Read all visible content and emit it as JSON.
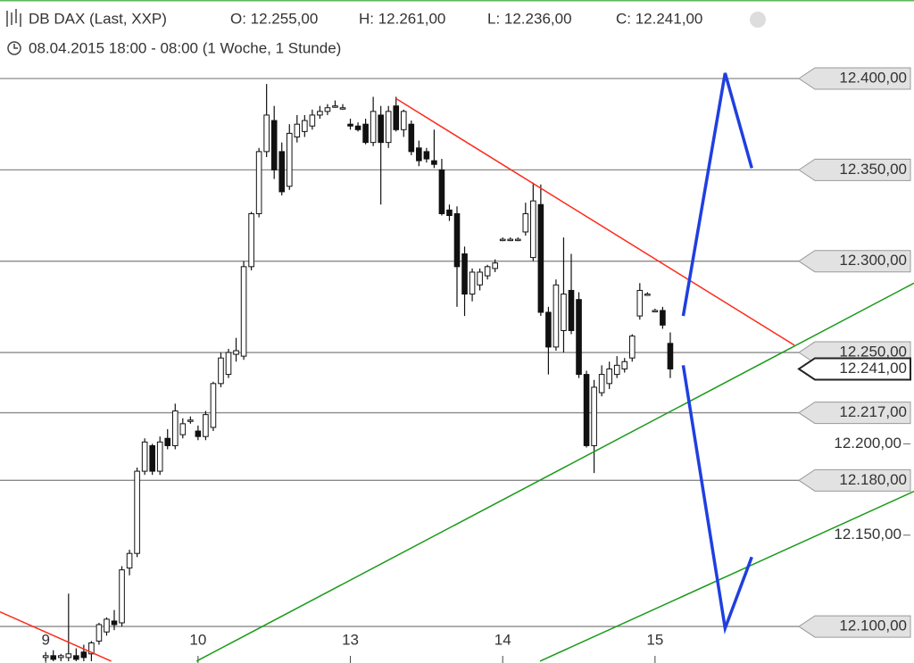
{
  "chart_data": {
    "type": "candlestick",
    "title": "DB DAX (Last, XXP)",
    "open_label": "O: 12.255,00",
    "high_label": "H: 12.261,00",
    "low_label": "L: 12.236,00",
    "close_label": "C: 12.241,00",
    "subtitle": "08.04.2015 18:00 - 08:00 (1 Woche, 1 Stunde)",
    "xlim": [
      -6,
      114
    ],
    "ylim": [
      12080,
      12443
    ],
    "xticks": [
      {
        "value": 0,
        "label": "9"
      },
      {
        "value": 20,
        "label": "10"
      },
      {
        "value": 40,
        "label": "13"
      },
      {
        "value": 60,
        "label": "14"
      },
      {
        "value": 80,
        "label": "15"
      }
    ],
    "yticks": [
      {
        "value": 12200,
        "label": "12.200,00"
      },
      {
        "value": 12150,
        "label": "12.150,00"
      }
    ],
    "levels": [
      {
        "value": 12400,
        "label": "12.400,00"
      },
      {
        "value": 12350,
        "label": "12.350,00"
      },
      {
        "value": 12300,
        "label": "12.300,00"
      },
      {
        "value": 12250,
        "label": "12.250,00"
      },
      {
        "value": 12217,
        "label": "12.217,00"
      },
      {
        "value": 12180,
        "label": "12.180,00"
      },
      {
        "value": 12100,
        "label": "12.100,00"
      }
    ],
    "current": {
      "value": 12241,
      "label": "12.241,00"
    },
    "x": [
      0,
      1,
      2,
      3,
      4,
      5,
      6,
      7,
      8,
      9,
      10,
      11,
      12,
      13,
      14,
      15,
      16,
      17,
      18,
      19,
      20,
      21,
      22,
      23,
      24,
      25,
      26,
      27,
      28,
      29,
      30,
      31,
      32,
      33,
      34,
      35,
      36,
      37,
      38,
      39,
      40,
      41,
      42,
      43,
      44,
      45,
      46,
      47,
      48,
      49,
      50,
      51,
      52,
      53,
      54,
      55,
      56,
      57,
      58,
      59,
      60,
      61,
      62,
      63,
      64,
      65,
      66,
      67,
      68,
      69,
      70,
      71,
      72,
      73,
      74,
      75,
      76,
      77,
      78,
      79,
      80,
      81,
      82
    ],
    "ohlc": [
      [
        12083,
        12086,
        12081,
        12084
      ],
      [
        12084,
        12087,
        12081,
        12082
      ],
      [
        12083,
        12085,
        12081,
        12084
      ],
      [
        12083,
        12118,
        12081,
        12085
      ],
      [
        12084,
        12088,
        12081,
        12082
      ],
      [
        12086,
        12090,
        12081,
        12083
      ],
      [
        12085,
        12092,
        12081,
        12091
      ],
      [
        12092,
        12102,
        12090,
        12101
      ],
      [
        12097,
        12105,
        12095,
        12104
      ],
      [
        12103,
        12109,
        12098,
        12101
      ],
      [
        12102,
        12133,
        12100,
        12131
      ],
      [
        12132,
        12142,
        12128,
        12140
      ],
      [
        12140,
        12187,
        12138,
        12185
      ],
      [
        12185,
        12203,
        12183,
        12201
      ],
      [
        12199,
        12200,
        12183,
        12185
      ],
      [
        12185,
        12204,
        12183,
        12201
      ],
      [
        12203,
        12208,
        12197,
        12199
      ],
      [
        12199,
        12222,
        12197,
        12218
      ],
      [
        12205,
        12214,
        12203,
        12211
      ],
      [
        12213,
        12215,
        12211,
        12213
      ],
      [
        12207,
        12210,
        12202,
        12204
      ],
      [
        12204,
        12218,
        12202,
        12216
      ],
      [
        12209,
        12234,
        12207,
        12233
      ],
      [
        12233,
        12250,
        12231,
        12247
      ],
      [
        12238,
        12252,
        12236,
        12250
      ],
      [
        12249,
        12258,
        12245,
        12251
      ],
      [
        12248,
        12300,
        12246,
        12297
      ],
      [
        12297,
        12327,
        12295,
        12326
      ],
      [
        12326,
        12362,
        12324,
        12360
      ],
      [
        12360,
        12397,
        12357,
        12380
      ],
      [
        12377,
        12385,
        12345,
        12350
      ],
      [
        12360,
        12365,
        12336,
        12338
      ],
      [
        12341,
        12375,
        12339,
        12370
      ],
      [
        12368,
        12380,
        12365,
        12375
      ],
      [
        12371,
        12380,
        12368,
        12377
      ],
      [
        12374,
        12383,
        12372,
        12380
      ],
      [
        12380,
        12385,
        12378,
        12382
      ],
      [
        12382,
        12386,
        12380,
        12384
      ],
      [
        12385,
        12388,
        12384,
        12385
      ],
      [
        12384,
        12386,
        12383,
        12384
      ],
      [
        12375,
        12378,
        12372,
        12374
      ],
      [
        12374,
        12376,
        12371,
        12372
      ],
      [
        12375,
        12378,
        12364,
        12365
      ],
      [
        12365,
        12390,
        12363,
        12382
      ],
      [
        12380,
        12385,
        12331,
        12365
      ],
      [
        12365,
        12385,
        12362,
        12382
      ],
      [
        12385,
        12390,
        12371,
        12372
      ],
      [
        12372,
        12383,
        12368,
        12382
      ],
      [
        12375,
        12377,
        12358,
        12360
      ],
      [
        12362,
        12366,
        12352,
        12355
      ],
      [
        12360,
        12362,
        12354,
        12356
      ],
      [
        12355,
        12372,
        12351,
        12353
      ],
      [
        12350,
        12356,
        12325,
        12326
      ],
      [
        12328,
        12331,
        12322,
        12325
      ],
      [
        12326,
        12330,
        12275,
        12297
      ],
      [
        12304,
        12308,
        12270,
        12282
      ],
      [
        12282,
        12296,
        12278,
        12294
      ],
      [
        12287,
        12296,
        12284,
        12294
      ],
      [
        12292,
        12298,
        12290,
        12297
      ],
      [
        12296,
        12301,
        12294,
        12299
      ],
      [
        12312,
        12313,
        12311,
        12312
      ],
      [
        12312,
        12313,
        12311,
        12312
      ],
      [
        12312,
        12313,
        12311,
        12312
      ],
      [
        12316,
        12332,
        12314,
        12326
      ],
      [
        12302,
        12343,
        12300,
        12333
      ],
      [
        12331,
        12342,
        12270,
        12272
      ],
      [
        12272,
        12275,
        12238,
        12253
      ],
      [
        12253,
        12290,
        12251,
        12287
      ],
      [
        12262,
        12313,
        12250,
        12282
      ],
      [
        12284,
        12304,
        12260,
        12262
      ],
      [
        12279,
        12283,
        12236,
        12238
      ],
      [
        12238,
        12240,
        12198,
        12199
      ],
      [
        12199,
        12235,
        12184,
        12231
      ],
      [
        12228,
        12243,
        12226,
        12238
      ],
      [
        12233,
        12245,
        12230,
        12241
      ],
      [
        12238,
        12248,
        12236,
        12243
      ],
      [
        12241,
        12247,
        12239,
        12245
      ],
      [
        12247,
        12260,
        12245,
        12259
      ],
      [
        12270,
        12288,
        12268,
        12284
      ],
      [
        12282,
        12283,
        12281,
        12282
      ],
      [
        12273,
        12274,
        12272,
        12273
      ],
      [
        12273,
        12275,
        12263,
        12265
      ],
      [
        12255,
        12261,
        12236,
        12241
      ]
    ],
    "drawings": [
      {
        "color": "#ff2a1a",
        "x": [
          46,
          98.3
        ],
        "values": [
          12389,
          12254
        ]
      },
      {
        "color": "#ff2a1a",
        "x": [
          -6,
          8.6
        ],
        "values": [
          12108,
          12081
        ]
      },
      {
        "color": "#1a9a1a",
        "x": [
          19.8,
          114
        ],
        "values": [
          12081,
          12288
        ]
      },
      {
        "color": "#1a9a1a",
        "x": [
          64.9,
          114
        ],
        "values": [
          12081,
          12174
        ]
      },
      {
        "color": "#1f3fe0",
        "x": [
          83.7,
          89.2,
          92.7
        ],
        "values": [
          12270,
          12403,
          12351
        ]
      },
      {
        "color": "#1f3fe0",
        "x": [
          83.7,
          89.2,
          92.7
        ],
        "values": [
          12243,
          12099,
          12138
        ]
      }
    ]
  }
}
